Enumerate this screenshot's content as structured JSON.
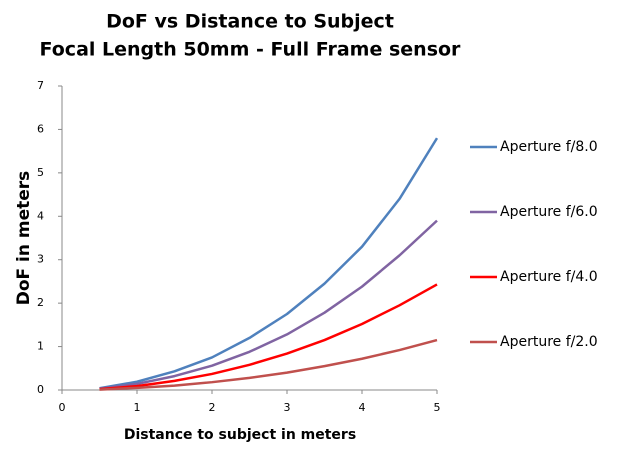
{
  "chart_data": {
    "type": "line",
    "title": "DoF vs Distance to Subject",
    "subtitle": "Focal Length 50mm - Full Frame sensor",
    "x_label": "Distance to subject in meters",
    "y_label": "DoF in meters",
    "x": [
      0.5,
      1,
      1.5,
      2,
      2.5,
      3,
      3.5,
      4,
      4.5,
      5
    ],
    "series": [
      {
        "name": "Aperture f/8.0",
        "color": "#4f81bd",
        "values": [
          0.04,
          0.19,
          0.43,
          0.75,
          1.2,
          1.75,
          2.45,
          3.3,
          4.4,
          5.8
        ]
      },
      {
        "name": "Aperture f/6.0",
        "color": "#8064a2",
        "values": [
          0.03,
          0.14,
          0.32,
          0.56,
          0.88,
          1.28,
          1.78,
          2.38,
          3.1,
          3.9
        ]
      },
      {
        "name": "Aperture f/4.0",
        "color": "#ff0000",
        "values": [
          0.02,
          0.09,
          0.21,
          0.37,
          0.58,
          0.84,
          1.15,
          1.52,
          1.95,
          2.43
        ]
      },
      {
        "name": "Aperture f/2.0",
        "color": "#c0504d",
        "values": [
          0.01,
          0.05,
          0.1,
          0.18,
          0.28,
          0.4,
          0.55,
          0.72,
          0.92,
          1.15
        ]
      }
    ],
    "xlim": [
      0,
      5
    ],
    "xticks": [
      0,
      1,
      2,
      3,
      4,
      5
    ],
    "ylim": [
      0,
      7
    ],
    "yticks": [
      0,
      1,
      2,
      3,
      4,
      5,
      6,
      7
    ],
    "grid": false,
    "legend": "right"
  }
}
